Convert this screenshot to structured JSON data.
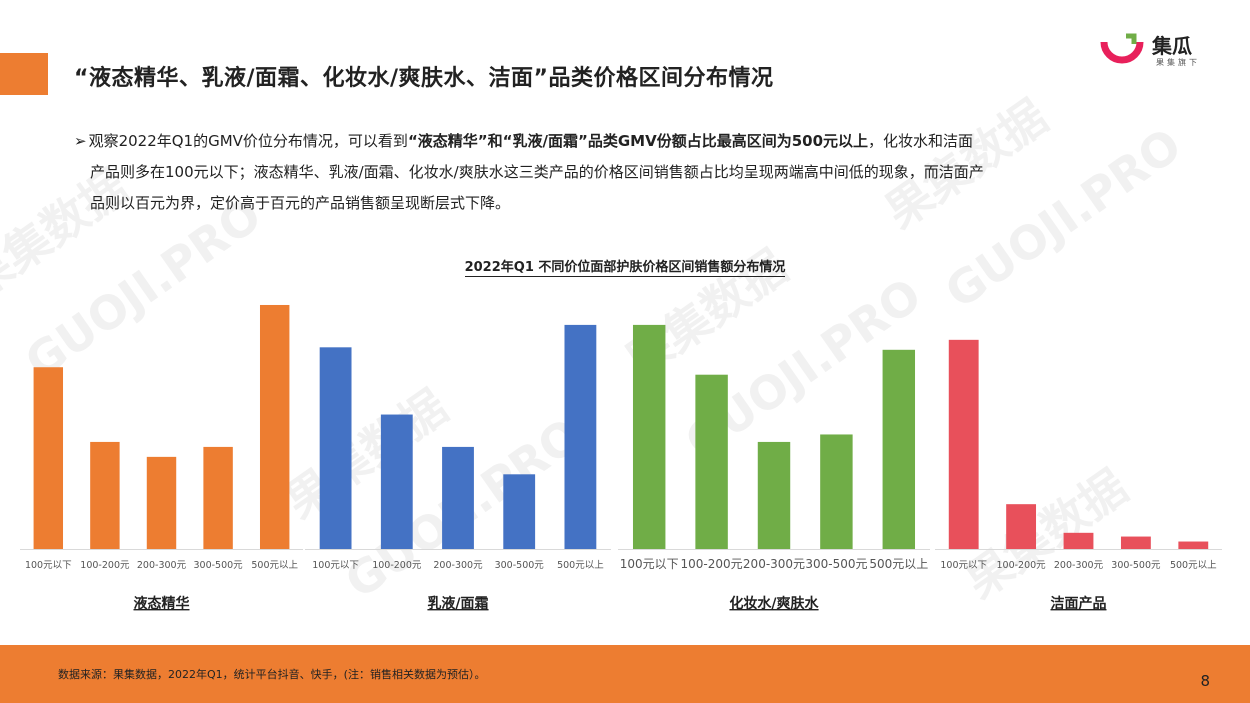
{
  "page": {
    "title": "“液态精华、乳液/面霜、化妆水/爽肤水、洁面”品类价格区间分布情况",
    "number": "8"
  },
  "logo": {
    "name": "集瓜",
    "sub": "果集旗下"
  },
  "bullet": {
    "arrow": "➢",
    "p1": "观察2022年Q1的GMV价位分布情况，可以看到",
    "p2_bold": "“液态精华”和“乳液/面霜”品类GMV份额占比最高区间为500元以上",
    "p3": "，化妆水和洁面",
    "p4": "产品则多在100元以下；液态精华、乳液/面霜、化妆水/爽肤水这三类产品的价格区间销售额占比均呈现两端高中间低的现象，而洁面产",
    "p5": "品则以百元为界，定价高于百元的产品销售额呈现断层式下降。"
  },
  "footer": {
    "note": "数据来源：果集数据，2022年Q1，统计平台抖音、快手，(注：销售相关数据为预估）。"
  },
  "chart_data": {
    "type": "bar",
    "title": "2022年Q1 不同价位面部护肤价格区间销售额分布情况",
    "ylim": [
      0,
      100
    ],
    "groups": [
      {
        "name": "液态精华",
        "color": "#ED7D31",
        "categories": [
          "100元以下",
          "100-200元",
          "200-300元",
          "300-500元",
          "500元以上"
        ],
        "values": [
          73,
          43,
          37,
          41,
          98
        ]
      },
      {
        "name": "乳液/面霜",
        "color": "#4472C4",
        "categories": [
          "100元以下",
          "100-200元",
          "200-300元",
          "300-500元",
          "500元以上"
        ],
        "values": [
          81,
          54,
          41,
          30,
          90
        ]
      },
      {
        "name": "化妆水/爽肤水",
        "color": "#70AD47",
        "categories": [
          "100元以下",
          "100-200元",
          "200-300元",
          "300-500元",
          "500元以上"
        ],
        "values": [
          90,
          70,
          43,
          46,
          80
        ]
      },
      {
        "name": "洁面产品",
        "color": "#E8505B",
        "categories": [
          "100元以下",
          "100-200元",
          "200-300元",
          "300-500元",
          "500元以上"
        ],
        "values": [
          84,
          18,
          6.5,
          5,
          3
        ]
      }
    ]
  }
}
